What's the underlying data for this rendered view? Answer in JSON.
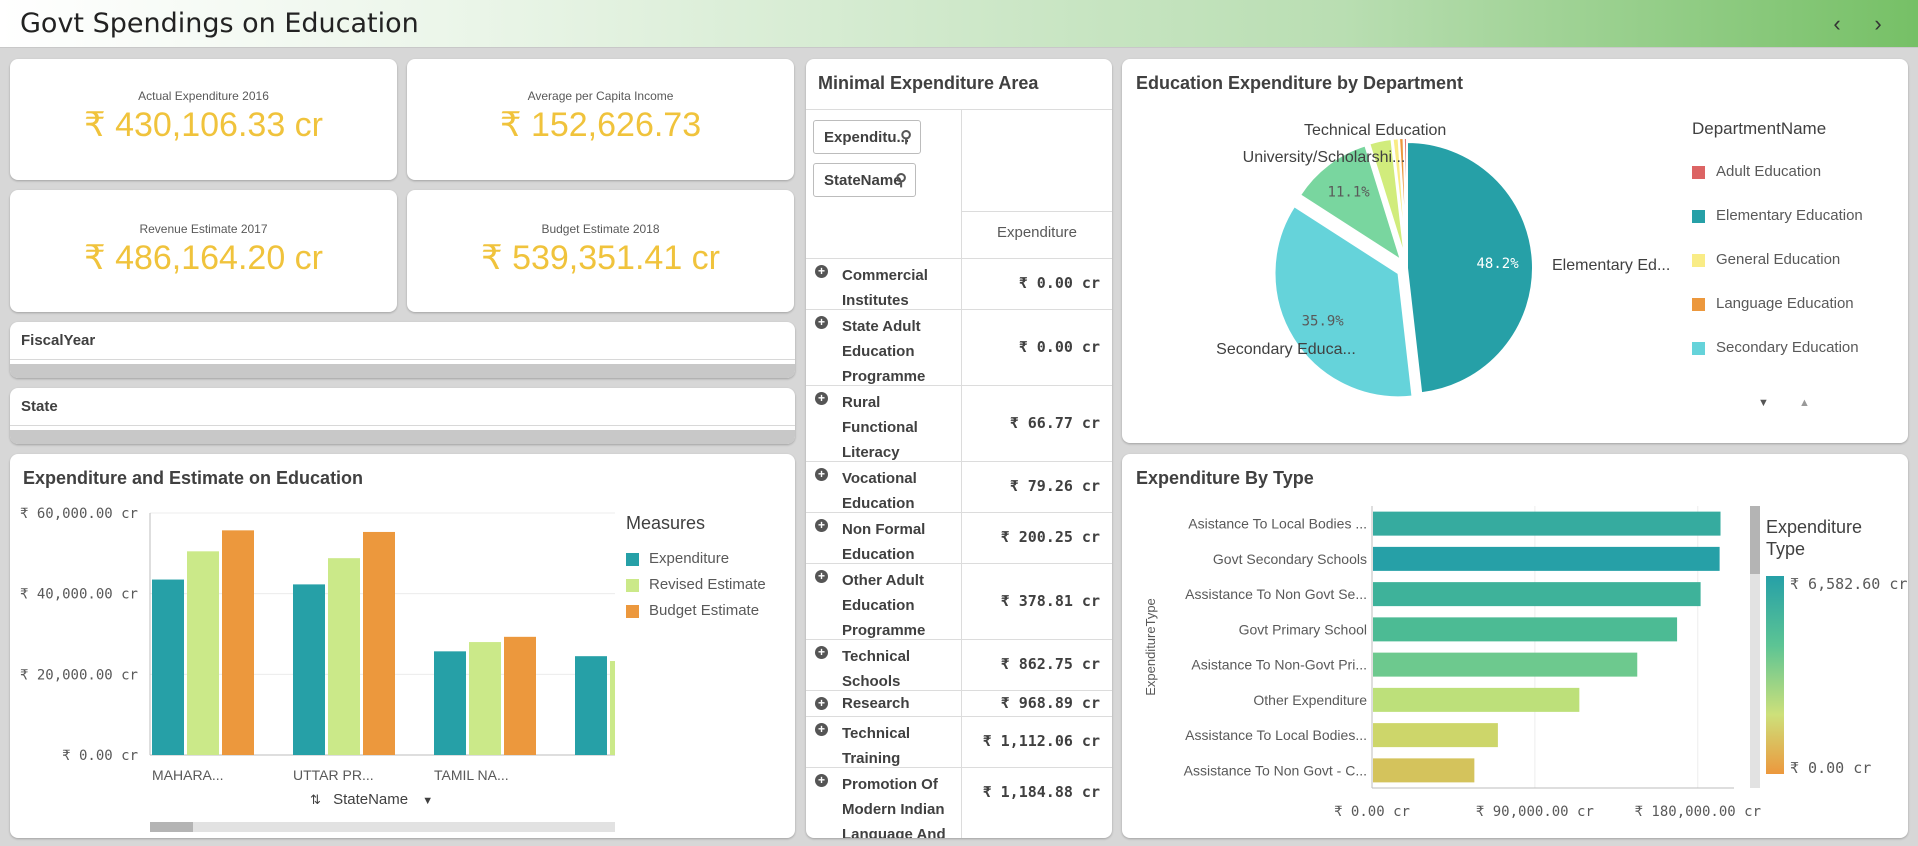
{
  "header": {
    "title": "Govt Spendings on Education",
    "prev_icon": "chevron-left-icon",
    "next_icon": "chevron-right-icon"
  },
  "kpis": [
    {
      "label": "Actual Expenditure 2016",
      "value": "₹ 430,106.33 cr"
    },
    {
      "label": "Average per Capita Income",
      "value": "₹ 152,626.73"
    },
    {
      "label": "Revenue Estimate 2017",
      "value": "₹ 486,164.20 cr"
    },
    {
      "label": "Budget Estimate 2018",
      "value": "₹ 539,351.41 cr"
    }
  ],
  "filters": {
    "fiscal_year": "FiscalYear",
    "state": "State"
  },
  "minimal_table": {
    "title": "Minimal Expenditure Area",
    "search1": "Expenditu...",
    "search2": "StateName",
    "column_header": "Expenditure",
    "rows": [
      {
        "name": "Commercial Institutes",
        "value": "₹ 0.00 cr"
      },
      {
        "name": "State Adult Education Programme",
        "value": "₹ 0.00 cr"
      },
      {
        "name": "Rural Functional Literacy",
        "value": "₹ 66.77 cr"
      },
      {
        "name": "Vocational Education",
        "value": "₹ 79.26 cr"
      },
      {
        "name": "Non Formal Education",
        "value": "₹ 200.25 cr"
      },
      {
        "name": "Other Adult Education Programme",
        "value": "₹ 378.81 cr"
      },
      {
        "name": "Technical Schools",
        "value": "₹ 862.75 cr"
      },
      {
        "name": "Research",
        "value": "₹ 968.89 cr"
      },
      {
        "name": "Technical Training",
        "value": "₹ 1,112.06 cr"
      },
      {
        "name": "Promotion Of Modern Indian Language And",
        "value": "₹ 1,184.88 cr"
      }
    ]
  },
  "chart_data": [
    {
      "type": "pie",
      "title": "Education Expenditure by Department",
      "legend_title": "DepartmentName",
      "slices": [
        {
          "name": "Elementary Education",
          "label": "Elementary Ed...",
          "value": 48.2,
          "pct_label": "48.2%",
          "color": "#26a0a7"
        },
        {
          "name": "Secondary Education",
          "label": "Secondary Educa...",
          "value": 35.9,
          "pct_label": "35.9%",
          "color": "#65d3da"
        },
        {
          "name": "University/Scholarships",
          "label": "University/Scholarshi...",
          "value": 11.1,
          "pct_label": "11.1%",
          "color": "#79d69f"
        },
        {
          "name": "Technical Education",
          "label": "Technical Education",
          "value": 3.0,
          "pct_label": "",
          "color": "#d1ec7c"
        },
        {
          "name": "General Education",
          "label": "",
          "value": 0.8,
          "pct_label": "",
          "color": "#f9ec86"
        },
        {
          "name": "Language Education",
          "label": "",
          "value": 0.6,
          "pct_label": "",
          "color": "#ec983d"
        },
        {
          "name": "Adult Education",
          "label": "",
          "value": 0.4,
          "pct_label": "",
          "color": "#dc6464"
        }
      ],
      "legend": [
        {
          "name": "Adult Education",
          "color": "#dc6464"
        },
        {
          "name": "Elementary Education",
          "color": "#26a0a7"
        },
        {
          "name": "General Education",
          "color": "#f9ec86"
        },
        {
          "name": "Language Education",
          "color": "#ec983d"
        },
        {
          "name": "Secondary Education",
          "color": "#65d3da"
        }
      ]
    },
    {
      "type": "bar",
      "title": "Expenditure and Estimate on Education",
      "legend_title": "Measures",
      "categories": [
        "MAHARA...",
        "UTTAR PR...",
        "TAMIL NA...",
        ""
      ],
      "series": [
        {
          "name": "Expenditure",
          "color": "#26a0a7",
          "values": [
            43500,
            42300,
            25700,
            24500
          ]
        },
        {
          "name": "Revised Estimate",
          "color": "#cbe989",
          "values": [
            50500,
            48800,
            28000,
            23300
          ]
        },
        {
          "name": "Budget Estimate",
          "color": "#ec983d",
          "values": [
            55700,
            55300,
            29300,
            0
          ]
        }
      ],
      "ylim": [
        0,
        60000
      ],
      "yticks": [
        0,
        20000,
        40000,
        60000
      ],
      "ytick_labels": [
        "₹ 0.00 cr",
        "₹ 20,000.00 cr",
        "₹ 40,000.00 cr",
        "₹ 60,000.00 cr"
      ],
      "xlabel": "StateName"
    },
    {
      "type": "bar",
      "orientation": "horizontal",
      "title": "Expenditure By Type",
      "ylabel": "ExpenditureType",
      "legend_title": "Expenditure Type",
      "legend_max": "₹ 6,582.60 cr",
      "legend_min": "₹ 0.00 cr",
      "categories": [
        "Asistance To Local Bodies ...",
        "Govt Secondary Schools",
        "Assistance To Non Govt Se...",
        "Govt Primary School",
        "Asistance To Non-Govt Pri...",
        "Other Expenditure",
        "Assistance To Local Bodies...",
        "Assistance To Non Govt - C..."
      ],
      "values": [
        192000,
        191500,
        181000,
        168000,
        146000,
        114000,
        69000,
        56000
      ],
      "colors": [
        "#36ab9f",
        "#26a0a7",
        "#3eb29a",
        "#4cbb94",
        "#6dc98e",
        "#bde07a",
        "#cdd66a",
        "#d4c35c"
      ],
      "xlim": [
        0,
        200000
      ],
      "xticks": [
        0,
        90000,
        180000
      ],
      "xtick_labels": [
        "₹ 0.00 cr",
        "₹ 90,000.00 cr",
        "₹ 180,000.00 cr"
      ]
    }
  ]
}
